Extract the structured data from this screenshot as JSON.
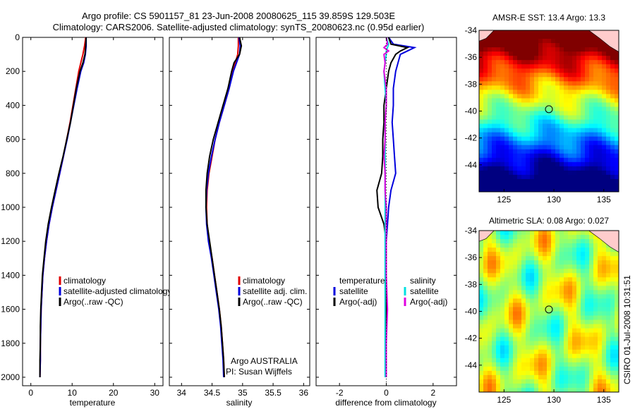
{
  "header": {
    "title_line1": "Argo profile: CS 5901157_81 23-Jun-2008 20080625_115 39.859S 129.503E",
    "title_line2": "Climatology: CARS2006. Satellite-adjusted climatology: synTS_20080623.nc (0.95d earlier)"
  },
  "side_note": "CSIRO 01-Jul-2008 10:31:51",
  "colors": {
    "red": "#e00000",
    "blue": "#0000dd",
    "black": "#000000",
    "cyan": "#00e0e0",
    "magenta": "#e000e0"
  },
  "chart_data": [
    {
      "type": "line",
      "name": "temperature",
      "xlabel": "temperature",
      "ylabel": "",
      "xlim": [
        -2,
        32
      ],
      "ylim": [
        2050,
        0
      ],
      "xticks": [
        0,
        10,
        20,
        30
      ],
      "yticks": [
        0,
        200,
        400,
        600,
        800,
        1000,
        1200,
        1400,
        1600,
        1800,
        2000
      ],
      "depth": [
        0,
        50,
        100,
        150,
        200,
        300,
        400,
        500,
        600,
        700,
        800,
        900,
        1000,
        1100,
        1200,
        1300,
        1400,
        1500,
        1600,
        1700,
        1800,
        1900,
        2000
      ],
      "series": [
        {
          "name": "climatology",
          "color": "red",
          "values": [
            13.3,
            13.0,
            12.6,
            12.1,
            11.6,
            10.9,
            10.2,
            9.5,
            8.7,
            7.9,
            7.0,
            6.1,
            5.2,
            4.4,
            3.8,
            3.3,
            2.9,
            2.7,
            2.5,
            2.4,
            2.3,
            2.3,
            2.2
          ]
        },
        {
          "name": "satellite-adjusted climatology",
          "color": "blue",
          "values": [
            13.4,
            13.4,
            13.2,
            12.8,
            12.1,
            11.2,
            10.4,
            9.6,
            8.8,
            7.9,
            7.0,
            6.1,
            5.2,
            4.4,
            3.8,
            3.3,
            2.9,
            2.7,
            2.5,
            2.4,
            2.3,
            2.3,
            2.2
          ]
        },
        {
          "name": "Argo(..raw -QC)",
          "color": "black",
          "values": [
            13.4,
            13.3,
            13.1,
            12.6,
            11.9,
            11.0,
            10.3,
            9.6,
            8.7,
            7.8,
            6.8,
            5.9,
            5.0,
            4.2,
            3.6,
            3.2,
            2.8,
            2.6,
            2.4,
            2.3,
            2.3,
            2.2,
            2.2
          ]
        }
      ],
      "legend": [
        "climatology",
        "satellite-adjusted climatology",
        "Argo(..raw -QC)"
      ]
    },
    {
      "type": "line",
      "name": "salinity",
      "xlabel": "salinity",
      "xlim": [
        33.8,
        36.1
      ],
      "ylim": [
        2050,
        0
      ],
      "xticks": [
        34,
        34.5,
        35,
        35.5,
        36
      ],
      "depth": [
        0,
        50,
        100,
        150,
        200,
        300,
        400,
        500,
        600,
        700,
        800,
        900,
        1000,
        1100,
        1200,
        1300,
        1400,
        1500,
        1600,
        1700,
        1800,
        1900,
        2000
      ],
      "series": [
        {
          "name": "climatology",
          "color": "red",
          "values": [
            34.93,
            34.93,
            34.92,
            34.88,
            34.84,
            34.78,
            34.7,
            34.62,
            34.55,
            34.5,
            34.45,
            34.42,
            34.41,
            34.42,
            34.45,
            34.5,
            34.54,
            34.58,
            34.62,
            34.65,
            34.67,
            34.69,
            34.7
          ]
        },
        {
          "name": "satellite adj. clim.",
          "color": "blue",
          "values": [
            34.94,
            34.96,
            34.95,
            34.9,
            34.85,
            34.78,
            34.7,
            34.62,
            34.55,
            34.49,
            34.44,
            34.41,
            34.4,
            34.41,
            34.44,
            34.49,
            34.53,
            34.57,
            34.61,
            34.64,
            34.66,
            34.68,
            34.69
          ]
        },
        {
          "name": "Argo(..raw -QC)",
          "color": "black",
          "values": [
            34.95,
            34.98,
            34.95,
            34.86,
            34.82,
            34.76,
            34.68,
            34.6,
            34.52,
            34.46,
            34.42,
            34.4,
            34.4,
            34.42,
            34.46,
            34.5,
            34.54,
            34.58,
            34.62,
            34.65,
            34.67,
            34.69,
            34.7
          ]
        }
      ],
      "legend": [
        "climatology",
        "satellite adj. clim.",
        "Argo(..raw -QC)"
      ],
      "annotation": [
        "Argo AUSTRALIA",
        "PI: Susan Wijffels"
      ]
    },
    {
      "type": "line",
      "name": "difference",
      "xlabel": "difference from climatology",
      "xlim": [
        -3,
        3
      ],
      "ylim": [
        2050,
        0
      ],
      "xticks": [
        -2,
        0,
        2
      ],
      "depth": [
        0,
        40,
        60,
        80,
        100,
        150,
        200,
        300,
        400,
        500,
        600,
        700,
        800,
        900,
        1000,
        1100,
        1200,
        1400,
        1600,
        1800,
        2000
      ],
      "series": [
        {
          "name": "temperature satellite",
          "color": "blue",
          "values": [
            0.1,
            0.3,
            1.2,
            0.9,
            0.6,
            0.5,
            0.4,
            0.3,
            0.3,
            0.25,
            0.3,
            0.35,
            0.4,
            0.2,
            0.1,
            0.05,
            0.0,
            0.0,
            0.0,
            0.0,
            0.0
          ]
        },
        {
          "name": "temperature Argo(-adj)",
          "color": "black",
          "values": [
            0.1,
            0.2,
            0.9,
            0.6,
            0.4,
            0.2,
            0.1,
            0.0,
            -0.1,
            -0.1,
            -0.15,
            -0.15,
            -0.2,
            -0.4,
            -0.35,
            -0.1,
            0.0,
            0.0,
            0.0,
            0.0,
            0.0
          ]
        },
        {
          "name": "salinity satellite",
          "color": "cyan",
          "values": [
            0.0,
            0.1,
            0.05,
            0.0,
            0.0,
            -0.05,
            -0.1,
            -0.05,
            0.0,
            -0.05,
            -0.05,
            -0.05,
            -0.05,
            -0.05,
            -0.05,
            -0.05,
            -0.05,
            -0.05,
            -0.05,
            -0.05,
            -0.05
          ]
        },
        {
          "name": "salinity Argo(-adj)",
          "color": "magenta",
          "values": [
            0.0,
            0.05,
            -0.1,
            0.1,
            -0.1,
            -0.05,
            -0.1,
            0.0,
            0.0,
            -0.05,
            -0.05,
            -0.1,
            -0.05,
            -0.05,
            0.0,
            0.0,
            0.0,
            0.0,
            0.05,
            0.0,
            0.0
          ]
        }
      ],
      "legend": {
        "temperature": [
          "satellite",
          "Argo(-adj)"
        ],
        "salinity": [
          "satellite",
          "Argo(-adj)"
        ]
      },
      "legend_headers": [
        "temperature",
        "salinity"
      ]
    },
    {
      "type": "heatmap",
      "name": "sst-map",
      "title": "AMSR-E SST: 13.4 Argo: 13.3",
      "xlim": [
        122.5,
        136.5
      ],
      "ylim": [
        -46,
        -34
      ],
      "xticks": [
        125,
        130,
        135
      ],
      "yticks": [
        -34,
        -36,
        -38,
        -40,
        -42,
        -44
      ],
      "marker": [
        129.5,
        -39.86
      ],
      "palette": "jet"
    },
    {
      "type": "heatmap",
      "name": "sla-map",
      "title": "Altimetric SLA: 0.08 Argo: 0.027",
      "xlim": [
        122.5,
        136.5
      ],
      "ylim": [
        -46,
        -34
      ],
      "xticks": [
        125,
        130,
        135
      ],
      "yticks": [
        -34,
        -36,
        -38,
        -40,
        -42,
        -44
      ],
      "marker": [
        129.5,
        -39.86
      ],
      "palette": "jet"
    }
  ]
}
